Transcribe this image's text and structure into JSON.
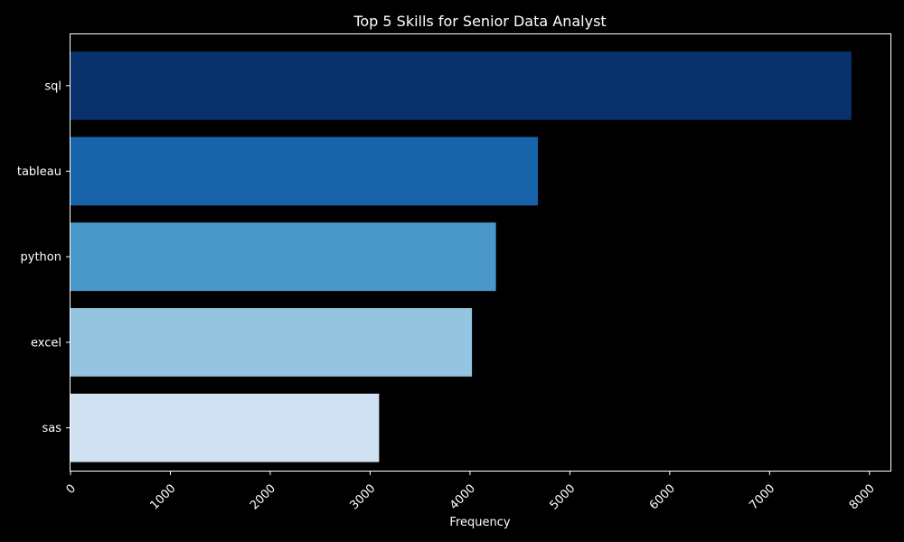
{
  "chart_data": {
    "type": "bar",
    "orientation": "horizontal",
    "title": "Top 5 Skills for Senior Data Analyst",
    "xlabel": "Frequency",
    "ylabel": "",
    "categories": [
      "sql",
      "tableau",
      "python",
      "excel",
      "sas"
    ],
    "values": [
      7820,
      4680,
      4260,
      4020,
      3090
    ],
    "colors": [
      "#08306b",
      "#1764ab",
      "#4a98c9",
      "#94c4df",
      "#d0e1f2"
    ],
    "xlim": [
      0,
      8210
    ],
    "xticks": [
      0,
      1000,
      2000,
      3000,
      4000,
      5000,
      6000,
      7000,
      8000
    ],
    "xtick_rotation": -45,
    "grid": false,
    "legend": "none",
    "background": "#000000",
    "text_color": "#ffffff"
  }
}
